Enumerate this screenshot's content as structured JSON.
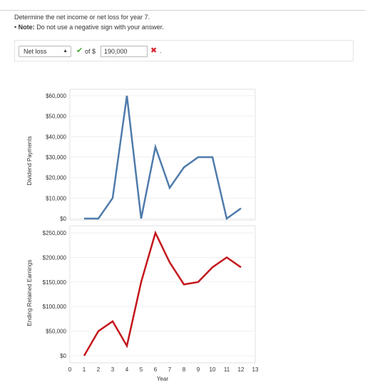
{
  "question": {
    "prompt": "Determine the net income or net loss for year 7.",
    "note_bullet": "•",
    "note_label": "Note:",
    "note_text": "Do not use a negative sign with your answer."
  },
  "answer": {
    "select_value": "Net loss",
    "of_label": "of $",
    "amount_value": "190,000",
    "select_status": "correct",
    "amount_status": "incorrect",
    "period": "."
  },
  "colors": {
    "dividends_line": "#4f7bab",
    "retained_line": "#c4161c",
    "check": "#3ea62e",
    "cross": "#d9232e"
  },
  "chart_data": [
    {
      "type": "line",
      "ylabel": "Dividend Payments",
      "xlabel": "",
      "yticks": [
        "$60,000",
        "$50,000",
        "$40,000",
        "$30,000",
        "$20,000",
        "$10,000",
        "$0"
      ],
      "ytick_values": [
        60000,
        50000,
        40000,
        30000,
        20000,
        10000,
        0
      ],
      "ylim": [
        0,
        62000
      ],
      "series": [
        {
          "x": [
            1,
            2,
            3,
            4,
            5,
            6,
            7,
            8,
            9,
            10,
            11,
            12
          ],
          "values": [
            0,
            0,
            10000,
            60000,
            0,
            35000,
            15000,
            25000,
            30000,
            30000,
            0,
            5000
          ]
        }
      ]
    },
    {
      "type": "line",
      "ylabel": "Ending Retained Earnings",
      "xlabel": "Year",
      "yticks": [
        "$250,000",
        "$200,000",
        "$150,000",
        "$100,000",
        "$50,000",
        "$0"
      ],
      "ytick_values": [
        250000,
        200000,
        150000,
        100000,
        50000,
        0
      ],
      "ylim": [
        0,
        250000
      ],
      "xticks": [
        "0",
        "1",
        "2",
        "3",
        "4",
        "5",
        "6",
        "7",
        "8",
        "9",
        "10",
        "11",
        "12",
        "13"
      ],
      "xlim": [
        0,
        13
      ],
      "series": [
        {
          "x": [
            1,
            2,
            3,
            4,
            5,
            6,
            7,
            8,
            9,
            10,
            11,
            12
          ],
          "values": [
            0,
            50000,
            70000,
            20000,
            150000,
            250000,
            190000,
            145000,
            150000,
            180000,
            200000,
            180000
          ]
        }
      ]
    }
  ]
}
